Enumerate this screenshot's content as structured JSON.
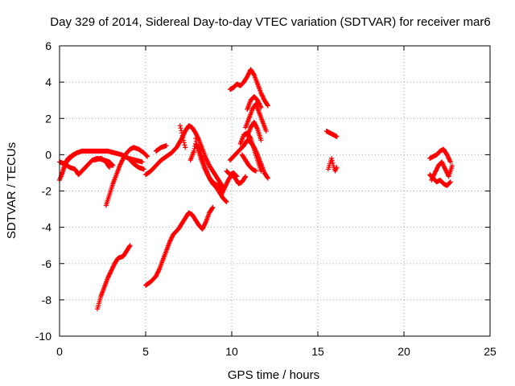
{
  "chart_data": {
    "type": "scatter",
    "title": "Day 329 of 2014, Sidereal Day-to-day VTEC variation (SDTVAR) for receiver mar6",
    "xlabel": "GPS time / hours",
    "ylabel": "SDTVAR / TECUs",
    "xlim": [
      0,
      25
    ],
    "ylim": [
      -10,
      6
    ],
    "x_ticks": [
      0,
      5,
      10,
      15,
      20,
      25
    ],
    "y_ticks": [
      -10,
      -8,
      -6,
      -4,
      -2,
      0,
      2,
      4,
      6
    ],
    "grid": true,
    "point_color": "#ff0000",
    "marker": "plus",
    "series": [
      {
        "tracks": [
          [
            [
              0.0,
              -1.4
            ],
            [
              0.2,
              -0.9
            ],
            [
              0.4,
              -0.4
            ],
            [
              0.7,
              -0.1
            ],
            [
              1.0,
              0.1
            ],
            [
              1.3,
              0.2
            ],
            [
              1.6,
              0.2
            ],
            [
              2.0,
              0.2
            ],
            [
              2.4,
              0.2
            ],
            [
              2.8,
              0.2
            ],
            [
              3.2,
              0.1
            ],
            [
              3.6,
              0.0
            ],
            [
              4.0,
              -0.2
            ],
            [
              4.4,
              -0.3
            ],
            [
              4.8,
              -0.4
            ]
          ],
          [
            [
              0.0,
              -0.4
            ],
            [
              0.3,
              -0.5
            ],
            [
              0.6,
              -0.7
            ],
            [
              0.9,
              -0.8
            ],
            [
              1.1,
              -1.1
            ],
            [
              1.3,
              -0.9
            ],
            [
              1.6,
              -0.6
            ],
            [
              1.9,
              -0.3
            ],
            [
              2.2,
              -0.2
            ],
            [
              2.6,
              -0.3
            ],
            [
              2.9,
              -0.4
            ],
            [
              3.1,
              -0.6
            ]
          ],
          [
            [
              0.1,
              -1.2
            ],
            [
              0.3,
              -0.5
            ],
            [
              0.5,
              -0.2
            ],
            [
              0.8,
              0.0
            ],
            [
              1.0,
              0.1
            ]
          ],
          [
            [
              2.0,
              -0.3
            ],
            [
              2.4,
              -0.2
            ],
            [
              2.7,
              -0.4
            ],
            [
              2.9,
              -0.7
            ]
          ],
          [
            [
              2.7,
              -2.8
            ],
            [
              2.9,
              -2.2
            ],
            [
              3.1,
              -1.6
            ],
            [
              3.3,
              -1.1
            ],
            [
              3.5,
              -0.6
            ],
            [
              3.7,
              -0.2
            ],
            [
              3.9,
              0.1
            ],
            [
              4.1,
              0.3
            ],
            [
              4.3,
              0.4
            ],
            [
              4.6,
              0.3
            ],
            [
              4.9,
              0.1
            ],
            [
              5.1,
              -0.1
            ]
          ],
          [
            [
              4.0,
              -0.2
            ],
            [
              4.3,
              -0.5
            ],
            [
              4.6,
              -0.7
            ],
            [
              4.9,
              -0.8
            ]
          ],
          [
            [
              2.2,
              -8.5
            ],
            [
              2.4,
              -7.8
            ],
            [
              2.6,
              -7.3
            ],
            [
              2.8,
              -6.8
            ],
            [
              3.0,
              -6.4
            ],
            [
              3.2,
              -6.0
            ],
            [
              3.4,
              -5.7
            ],
            [
              3.7,
              -5.6
            ],
            [
              3.9,
              -5.3
            ],
            [
              4.1,
              -5.0
            ]
          ],
          [
            [
              5.0,
              -7.2
            ],
            [
              5.3,
              -7.0
            ],
            [
              5.6,
              -6.7
            ],
            [
              5.8,
              -6.3
            ],
            [
              6.0,
              -5.8
            ],
            [
              6.2,
              -5.3
            ],
            [
              6.4,
              -4.8
            ],
            [
              6.6,
              -4.4
            ],
            [
              6.9,
              -4.1
            ],
            [
              7.1,
              -3.8
            ],
            [
              7.3,
              -3.5
            ],
            [
              7.5,
              -3.2
            ],
            [
              7.7,
              -3.3
            ],
            [
              7.9,
              -3.6
            ],
            [
              8.1,
              -3.9
            ],
            [
              8.3,
              -4.1
            ],
            [
              8.5,
              -3.7
            ],
            [
              8.7,
              -3.2
            ],
            [
              8.9,
              -2.9
            ]
          ],
          [
            [
              5.0,
              -1.1
            ],
            [
              5.3,
              -0.9
            ],
            [
              5.6,
              -0.6
            ],
            [
              5.9,
              -0.3
            ],
            [
              6.2,
              -0.1
            ],
            [
              6.5,
              0.1
            ],
            [
              6.8,
              0.4
            ],
            [
              7.1,
              0.9
            ],
            [
              7.3,
              1.3
            ],
            [
              7.5,
              1.6
            ],
            [
              7.7,
              1.5
            ],
            [
              7.9,
              1.2
            ],
            [
              8.1,
              0.8
            ],
            [
              8.3,
              0.3
            ],
            [
              8.5,
              -0.2
            ],
            [
              8.7,
              -0.6
            ],
            [
              8.9,
              -0.9
            ],
            [
              9.1,
              -1.2
            ],
            [
              9.3,
              -1.5
            ],
            [
              9.5,
              -1.8
            ]
          ],
          [
            [
              5.6,
              0.2
            ],
            [
              5.9,
              0.4
            ],
            [
              6.2,
              0.5
            ]
          ],
          [
            [
              7.0,
              1.6
            ],
            [
              7.1,
              1.2
            ],
            [
              7.2,
              0.8
            ],
            [
              7.3,
              0.4
            ]
          ],
          [
            [
              7.6,
              -0.3
            ],
            [
              7.8,
              0.2
            ],
            [
              7.9,
              0.6
            ],
            [
              8.1,
              0.3
            ],
            [
              8.3,
              -0.2
            ],
            [
              8.5,
              -0.8
            ],
            [
              8.7,
              -1.3
            ],
            [
              8.9,
              -1.6
            ],
            [
              9.1,
              -1.8
            ],
            [
              9.3,
              -2.1
            ],
            [
              9.5,
              -2.4
            ],
            [
              9.7,
              -2.6
            ]
          ],
          [
            [
              7.9,
              0.9
            ],
            [
              8.0,
              0.4
            ],
            [
              8.2,
              -0.2
            ],
            [
              8.4,
              -0.7
            ],
            [
              8.6,
              -1.1
            ],
            [
              8.8,
              -1.4
            ],
            [
              9.0,
              -1.6
            ],
            [
              9.2,
              -1.7
            ],
            [
              9.4,
              -1.9
            ]
          ],
          [
            [
              9.4,
              -2.2
            ],
            [
              9.6,
              -1.8
            ],
            [
              9.8,
              -1.4
            ],
            [
              10.0,
              -1.1
            ],
            [
              10.2,
              -1.3
            ],
            [
              10.4,
              -1.6
            ],
            [
              10.6,
              -1.5
            ],
            [
              10.8,
              -1.2
            ]
          ],
          [
            [
              9.7,
              -0.9
            ],
            [
              9.9,
              -1.1
            ],
            [
              10.1,
              -1.0
            ],
            [
              10.3,
              -1.2
            ]
          ],
          [
            [
              9.9,
              -0.3
            ],
            [
              10.1,
              -0.1
            ],
            [
              10.3,
              0.1
            ],
            [
              10.5,
              0.3
            ],
            [
              10.7,
              0.5
            ],
            [
              10.9,
              0.8
            ],
            [
              11.1,
              0.7
            ],
            [
              11.3,
              0.4
            ],
            [
              11.5,
              0.0
            ],
            [
              11.7,
              -0.5
            ],
            [
              11.9,
              -1.0
            ],
            [
              12.1,
              -1.3
            ]
          ],
          [
            [
              10.5,
              0.6
            ],
            [
              10.7,
              1.1
            ],
            [
              10.9,
              1.2
            ],
            [
              11.1,
              0.9
            ],
            [
              11.3,
              0.3
            ],
            [
              11.5,
              -0.3
            ],
            [
              11.7,
              -0.9
            ]
          ],
          [
            [
              10.6,
              0.0
            ],
            [
              10.8,
              -0.3
            ],
            [
              11.0,
              -0.6
            ],
            [
              11.2,
              -0.8
            ],
            [
              11.4,
              -0.9
            ]
          ],
          [
            [
              9.9,
              3.6
            ],
            [
              10.1,
              3.7
            ],
            [
              10.3,
              3.9
            ],
            [
              10.5,
              3.8
            ],
            [
              10.7,
              4.0
            ],
            [
              10.9,
              4.3
            ],
            [
              11.1,
              4.7
            ],
            [
              11.3,
              4.4
            ],
            [
              11.5,
              3.9
            ],
            [
              11.7,
              3.4
            ],
            [
              11.9,
              3.0
            ],
            [
              12.1,
              2.7
            ]
          ],
          [
            [
              10.9,
              2.5
            ],
            [
              11.1,
              3.0
            ],
            [
              11.3,
              3.2
            ],
            [
              11.5,
              3.0
            ],
            [
              11.7,
              2.6
            ]
          ],
          [
            [
              10.8,
              1.5
            ],
            [
              11.0,
              2.0
            ],
            [
              11.2,
              2.5
            ],
            [
              11.4,
              2.8
            ],
            [
              11.6,
              2.3
            ],
            [
              11.8,
              1.8
            ],
            [
              12.0,
              1.3
            ]
          ],
          [
            [
              10.9,
              1.0
            ],
            [
              11.1,
              1.5
            ],
            [
              11.3,
              1.8
            ],
            [
              11.5,
              1.4
            ],
            [
              11.7,
              0.8
            ]
          ],
          [
            [
              15.5,
              1.3
            ],
            [
              15.7,
              1.2
            ],
            [
              15.9,
              1.1
            ],
            [
              16.1,
              1.0
            ]
          ],
          [
            [
              15.6,
              -0.8
            ],
            [
              15.7,
              -0.5
            ],
            [
              15.8,
              -0.2
            ],
            [
              15.9,
              -0.6
            ],
            [
              16.0,
              -0.9
            ],
            [
              16.1,
              -0.7
            ]
          ],
          [
            [
              21.5,
              -1.1
            ],
            [
              21.7,
              -1.3
            ],
            [
              21.9,
              -1.5
            ],
            [
              22.1,
              -1.4
            ],
            [
              22.3,
              -1.6
            ],
            [
              22.5,
              -1.7
            ],
            [
              22.7,
              -1.5
            ]
          ],
          [
            [
              21.5,
              -0.2
            ],
            [
              21.7,
              -0.1
            ],
            [
              21.9,
              0.0
            ],
            [
              22.1,
              0.2
            ],
            [
              22.3,
              0.3
            ],
            [
              22.5,
              0.0
            ],
            [
              22.7,
              -0.4
            ]
          ],
          [
            [
              21.6,
              -1.4
            ],
            [
              21.8,
              -1.0
            ],
            [
              22.0,
              -0.6
            ],
            [
              22.2,
              -0.4
            ],
            [
              22.4,
              -0.8
            ],
            [
              22.6,
              -1.2
            ],
            [
              22.8,
              -0.6
            ]
          ]
        ]
      }
    ]
  }
}
